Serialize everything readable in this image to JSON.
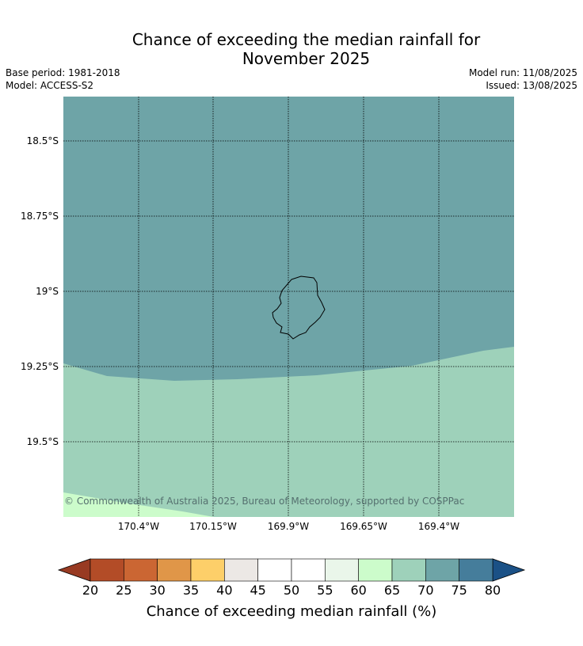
{
  "title_line1": "Chance of exceeding the median rainfall for",
  "title_line2": "November 2025",
  "base_period": "Base period: 1981-2018",
  "model": "Model: ACCESS-S2",
  "model_run": "Model run: 11/08/2025",
  "issued": "Issued: 13/08/2025",
  "copyright": "© Commonwealth of Australia 2025, Bureau of Meteorology, supported by COSPPac",
  "map": {
    "lat_labels": [
      "18.5°S",
      "18.75°S",
      "19°S",
      "19.25°S",
      "19.5°S"
    ],
    "lon_labels": [
      "170.4°W",
      "170.15°W",
      "169.9°W",
      "169.65°W",
      "169.4°W"
    ],
    "regions": [
      {
        "band": "70-75",
        "color": "#6ea4a7"
      },
      {
        "band": "65-70",
        "color": "#9ed1ba"
      },
      {
        "band": "60-65",
        "color": "#ccfccb"
      }
    ]
  },
  "colorbar": {
    "label": "Chance of exceeding median rainfall (%)",
    "ticks": [
      "20",
      "25",
      "30",
      "35",
      "40",
      "45",
      "50",
      "55",
      "60",
      "65",
      "70",
      "75",
      "80"
    ],
    "colors": [
      "#b34c27",
      "#cb6633",
      "#e09648",
      "#fdcf69",
      "#ece8e5",
      "#ffffff",
      "#ffffff",
      "#eaf6ea",
      "#ccfccb",
      "#9ed1ba",
      "#6ea4a7",
      "#457d9b"
    ],
    "under_color": "#983a22",
    "over_color": "#1b5186"
  }
}
